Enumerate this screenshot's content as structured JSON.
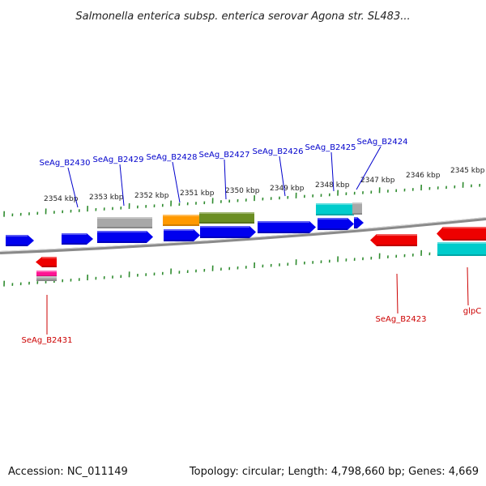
{
  "title": "Salmonella enterica subsp. enterica serovar Agona str. SL483...",
  "footer": {
    "accession": "Accession: NC_011149",
    "summary": "Topology: circular; Length: 4,798,660 bp; Genes: 4,669"
  },
  "colors": {
    "forward_label": "#0000cc",
    "reverse_label": "#cc0000",
    "backbone": "#808080",
    "tick": "#2e8b2e",
    "cds_forward": "#0000ee",
    "cds_reverse": "#ee0000",
    "feature_gray": "#a8a8a8",
    "feature_orange": "#ff9900",
    "feature_olive": "#6b8e23",
    "feature_cyan": "#00cccc",
    "feature_pink": "#ff1493"
  },
  "tick_labels": [
    "2354 kbp",
    "2353 kbp",
    "2352 kbp",
    "2351 kbp",
    "2350 kbp",
    "2349 kbp",
    "2348 kbp",
    "2347 kbp",
    "2346 kbp",
    "2345 kbp"
  ],
  "forward_genes": [
    "SeAg_B2430",
    "SeAg_B2429",
    "SeAg_B2428",
    "SeAg_B2427",
    "SeAg_B2426",
    "SeAg_B2425",
    "SeAg_B2424"
  ],
  "reverse_genes": [
    "SeAg_B2431",
    "SeAg_B2423",
    "glpC"
  ]
}
